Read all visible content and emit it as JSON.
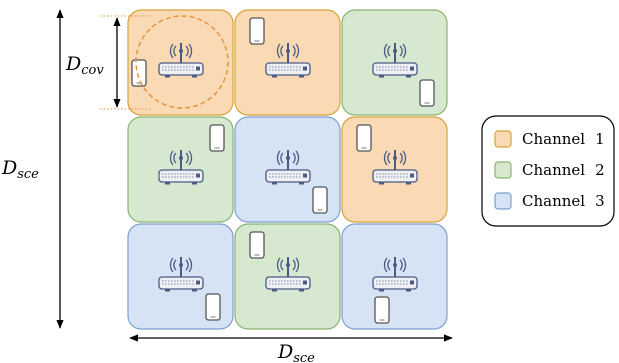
{
  "labels": {
    "d_cov": {
      "main": "D",
      "sub": "cov"
    },
    "d_sce_vertical": {
      "main": "D",
      "sub": "sce"
    },
    "d_sce_horizontal": {
      "main": "D",
      "sub": "sce"
    }
  },
  "channels": [
    {
      "id": 1,
      "name": "Channel",
      "number": "1",
      "fill": "#fad9b5",
      "stroke": "#d8a23a"
    },
    {
      "id": 2,
      "name": "Channel",
      "number": "2",
      "fill": "#d6e8d0",
      "stroke": "#86b46e"
    },
    {
      "id": 3,
      "name": "Channel",
      "number": "3",
      "fill": "#d6e3f5",
      "stroke": "#7d9fcf"
    }
  ],
  "grid": [
    {
      "row": 1,
      "col": 1,
      "channel": 1,
      "phone": "left-mid"
    },
    {
      "row": 1,
      "col": 2,
      "channel": 1,
      "phone": "top-left"
    },
    {
      "row": 1,
      "col": 3,
      "channel": 2,
      "phone": "bottom-right"
    },
    {
      "row": 2,
      "col": 1,
      "channel": 2,
      "phone": "top-right"
    },
    {
      "row": 2,
      "col": 2,
      "channel": 3,
      "phone": "bottom-right"
    },
    {
      "row": 2,
      "col": 3,
      "channel": 1,
      "phone": "top-left"
    },
    {
      "row": 3,
      "col": 1,
      "channel": 3,
      "phone": "bottom-right"
    },
    {
      "row": 3,
      "col": 2,
      "channel": 2,
      "phone": "top-left"
    },
    {
      "row": 3,
      "col": 3,
      "channel": 3,
      "phone": "bottom-left"
    }
  ],
  "icons": {
    "router": "wifi-router-icon",
    "phone": "smartphone-icon",
    "coverage": "coverage-circle"
  }
}
